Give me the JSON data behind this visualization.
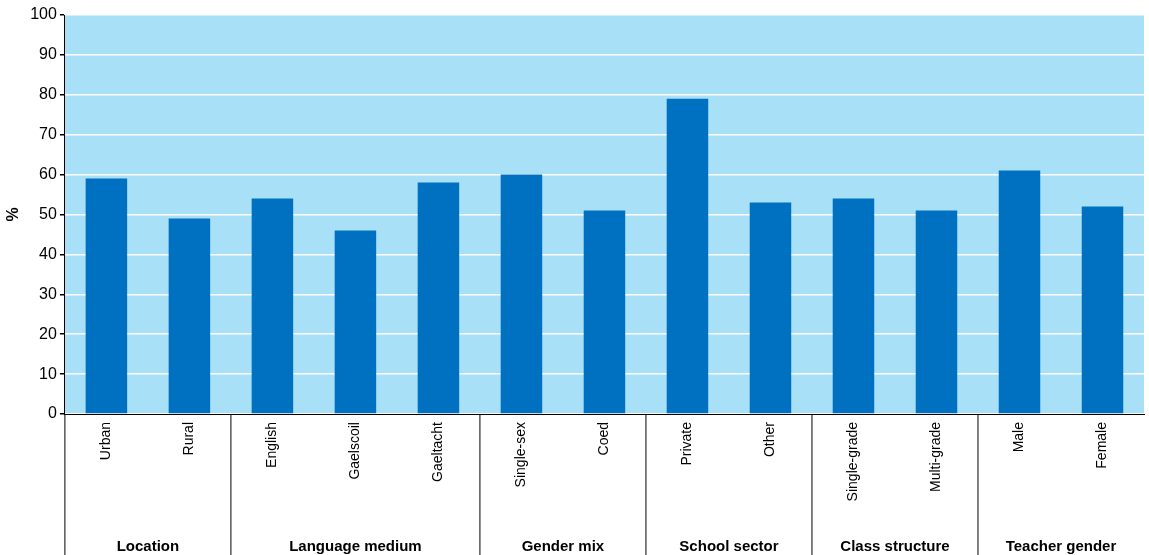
{
  "chart_data": {
    "type": "bar",
    "ylabel": "%",
    "categories": [
      "Urban",
      "Rural",
      "English",
      "Gaelscoil",
      "Gaeltacht",
      "Single-sex",
      "Coed",
      "Private",
      "Other",
      "Single-grade",
      "Multi-grade",
      "Male",
      "Female"
    ],
    "values": [
      59,
      49,
      54,
      46,
      58,
      60,
      51,
      79,
      53,
      54,
      51,
      61,
      52
    ],
    "color": "#0070c0",
    "ylim": [
      0,
      100
    ],
    "yticks": [
      0,
      10,
      20,
      30,
      40,
      50,
      60,
      70,
      80,
      90,
      100
    ],
    "grid": "y",
    "annotations": [
      "Location",
      "Language medium",
      "Gender mix",
      "School sector",
      "Class structure",
      "Teacher gender"
    ]
  }
}
